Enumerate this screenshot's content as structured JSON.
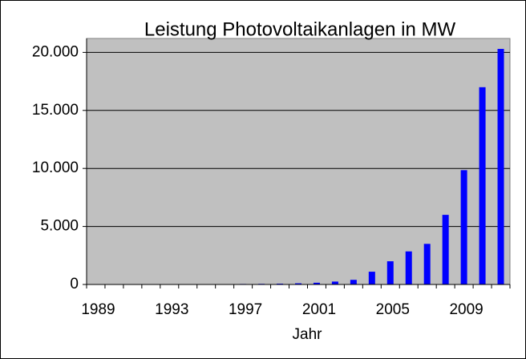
{
  "chart_data": {
    "type": "bar",
    "title": "Leistung Photovoltaikanlagen in MW",
    "x_label": "Jahr",
    "categories": [
      "1989",
      null,
      null,
      null,
      "1993",
      null,
      null,
      null,
      "1997",
      null,
      null,
      null,
      "2001",
      null,
      null,
      null,
      "2005",
      null,
      null,
      null,
      "2009",
      null,
      null
    ],
    "values": [
      1,
      2,
      3,
      6,
      9,
      12,
      18,
      28,
      42,
      54,
      70,
      100,
      150,
      250,
      400,
      1100,
      2000,
      2850,
      3500,
      6000,
      9850,
      17000,
      20300
    ],
    "color": "#0000ff",
    "ylim": [
      0,
      21200
    ],
    "yticks": [
      0,
      {
        "value": 5000,
        "label": "5.000"
      },
      {
        "value": 10000,
        "label": "10.000"
      },
      {
        "value": 15000,
        "label": "15.000"
      },
      {
        "value": 20000,
        "label": "20.000"
      }
    ],
    "grid": true
  }
}
